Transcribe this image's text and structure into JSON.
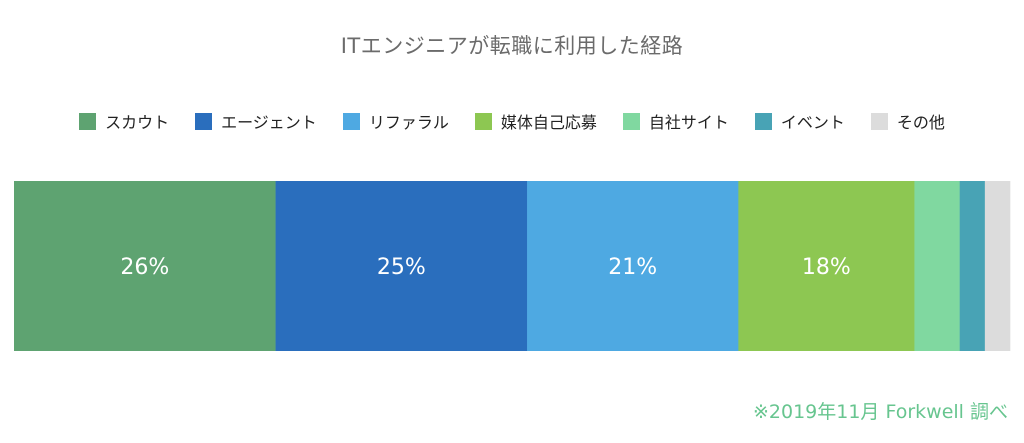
{
  "title": "ITエンジニアが転職に利用した経路",
  "source": "※2019年11月 Forkwell 調べ",
  "chart_data": {
    "type": "bar",
    "orientation": "horizontal-stacked-100",
    "title": "ITエンジニアが転職に利用した経路",
    "series": [
      {
        "name": "スカウト",
        "value": 26,
        "label": "26%",
        "color": "#5ea371"
      },
      {
        "name": "エージェント",
        "value": 25,
        "label": "25%",
        "color": "#2a6ebd"
      },
      {
        "name": "リファラル",
        "value": 21,
        "label": "21%",
        "color": "#4ea9e2"
      },
      {
        "name": "媒体自己応募",
        "value": 17.5,
        "label": "18%",
        "color": "#8dc752"
      },
      {
        "name": "自社サイト",
        "value": 4.5,
        "label": "",
        "color": "#80d8a0"
      },
      {
        "name": "イベント",
        "value": 2.5,
        "label": "",
        "color": "#48a3b5"
      },
      {
        "name": "その他",
        "value": 2.5,
        "label": "",
        "color": "#dcdcdc"
      }
    ],
    "legend_position": "top",
    "grid": false
  }
}
